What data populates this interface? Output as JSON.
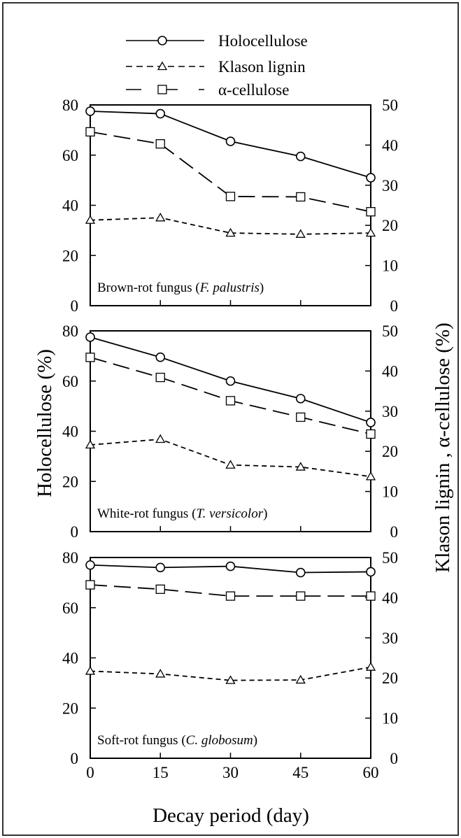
{
  "figure": {
    "xlabel": "Decay period (day)",
    "ylabel_left": "Holocellulose (%)",
    "ylabel_right": "Klason lignin , α-cellulose (%)",
    "legend": [
      {
        "name": "Holocellulose",
        "line": "solid",
        "marker": "circle"
      },
      {
        "name": "Klason lignin",
        "line": "short-dash",
        "marker": "triangle"
      },
      {
        "name": "α-cellulose",
        "line": "long-dash",
        "marker": "square"
      }
    ],
    "colors": {
      "ink": "#000000",
      "marker_fill": "#ffffff",
      "frame": "#333333"
    }
  },
  "chart_data": [
    {
      "type": "line",
      "panel_label": {
        "prefix": "Brown-rot fungus (",
        "organism": "F. palustris",
        "suffix": ")"
      },
      "x": [
        0,
        15,
        30,
        45,
        60
      ],
      "xlim": [
        0,
        60
      ],
      "y_left_lim": [
        0,
        80
      ],
      "y_right_lim": [
        0,
        50
      ],
      "y_left_ticks": [
        "0",
        "20",
        "40",
        "60",
        "80"
      ],
      "y_right_ticks": [
        "0",
        "10",
        "20",
        "30",
        "40",
        "50"
      ],
      "series": [
        {
          "name": "Holocellulose",
          "axis": "left",
          "values": [
            77.5,
            76.5,
            65.5,
            59.5,
            51
          ]
        },
        {
          "name": "Klason lignin",
          "axis": "right",
          "values": [
            21.3,
            21.9,
            18.1,
            17.8,
            18.1
          ]
        },
        {
          "name": "α-cellulose",
          "axis": "right",
          "values": [
            43.3,
            40.3,
            27.2,
            27.1,
            23.4
          ]
        }
      ]
    },
    {
      "type": "line",
      "panel_label": {
        "prefix": "White-rot fungus (",
        "organism": "T. versicolor",
        "suffix": ")"
      },
      "x": [
        0,
        15,
        30,
        45,
        60
      ],
      "xlim": [
        0,
        60
      ],
      "y_left_lim": [
        0,
        80
      ],
      "y_right_lim": [
        0,
        50
      ],
      "y_left_ticks": [
        "0",
        "20",
        "40",
        "60",
        "80"
      ],
      "y_right_ticks": [
        "0",
        "10",
        "20",
        "30",
        "40",
        "50"
      ],
      "series": [
        {
          "name": "Holocellulose",
          "axis": "left",
          "values": [
            77.5,
            69.5,
            60,
            53,
            43.5
          ]
        },
        {
          "name": "Klason lignin",
          "axis": "right",
          "values": [
            21.6,
            23,
            16.6,
            16.1,
            13.7
          ]
        },
        {
          "name": "α-cellulose",
          "axis": "right",
          "values": [
            43.4,
            38.4,
            32.6,
            28.5,
            24.3
          ]
        }
      ]
    },
    {
      "type": "line",
      "panel_label": {
        "prefix": "Soft-rot fungus (",
        "organism": "C. globosum",
        "suffix": ")"
      },
      "x": [
        0,
        15,
        30,
        45,
        60
      ],
      "xlim": [
        0,
        60
      ],
      "y_left_lim": [
        0,
        80
      ],
      "y_right_lim": [
        0,
        50
      ],
      "y_left_ticks": [
        "0",
        "20",
        "40",
        "60",
        "80"
      ],
      "y_right_ticks": [
        "0",
        "10",
        "20",
        "30",
        "40",
        "50"
      ],
      "x_ticks": [
        "0",
        "15",
        "30",
        "45",
        "60"
      ],
      "series": [
        {
          "name": "Holocellulose",
          "axis": "left",
          "values": [
            77,
            76,
            76.5,
            74,
            74.3
          ]
        },
        {
          "name": "Klason lignin",
          "axis": "right",
          "values": [
            21.7,
            21,
            19.4,
            19.5,
            22.7
          ]
        },
        {
          "name": "α-cellulose",
          "axis": "right",
          "values": [
            43.2,
            42.1,
            40.4,
            40.4,
            40.4
          ]
        }
      ]
    }
  ]
}
